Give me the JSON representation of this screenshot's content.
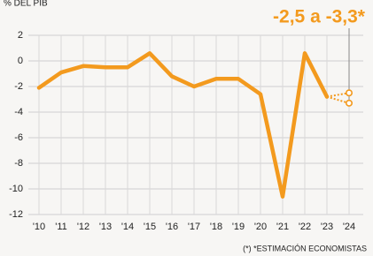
{
  "chart_data": {
    "type": "line",
    "axis_title": "% DEL PIB",
    "categories": [
      "'10",
      "'11",
      "'12",
      "'13",
      "'14",
      "'15",
      "'16",
      "'17",
      "'18",
      "'19",
      "'20",
      "'21",
      "'22",
      "'23",
      "'24"
    ],
    "values": [
      -2.1,
      -0.9,
      -0.4,
      -0.5,
      -0.5,
      0.6,
      -1.2,
      -2.0,
      -1.4,
      -1.4,
      -2.6,
      -10.6,
      0.6,
      -2.8,
      null
    ],
    "estimate_values": [
      -2.5,
      -3.3
    ],
    "color": "#f39a1e",
    "annotation": "-2,5 a -3,3*",
    "footnote": "(*) *ESTIMACIÓN ECONOMISTAS",
    "ylim": [
      -12,
      2
    ],
    "yticks": [
      2,
      0,
      -2,
      -4,
      -6,
      -8,
      -10,
      -12
    ],
    "grid": true
  }
}
